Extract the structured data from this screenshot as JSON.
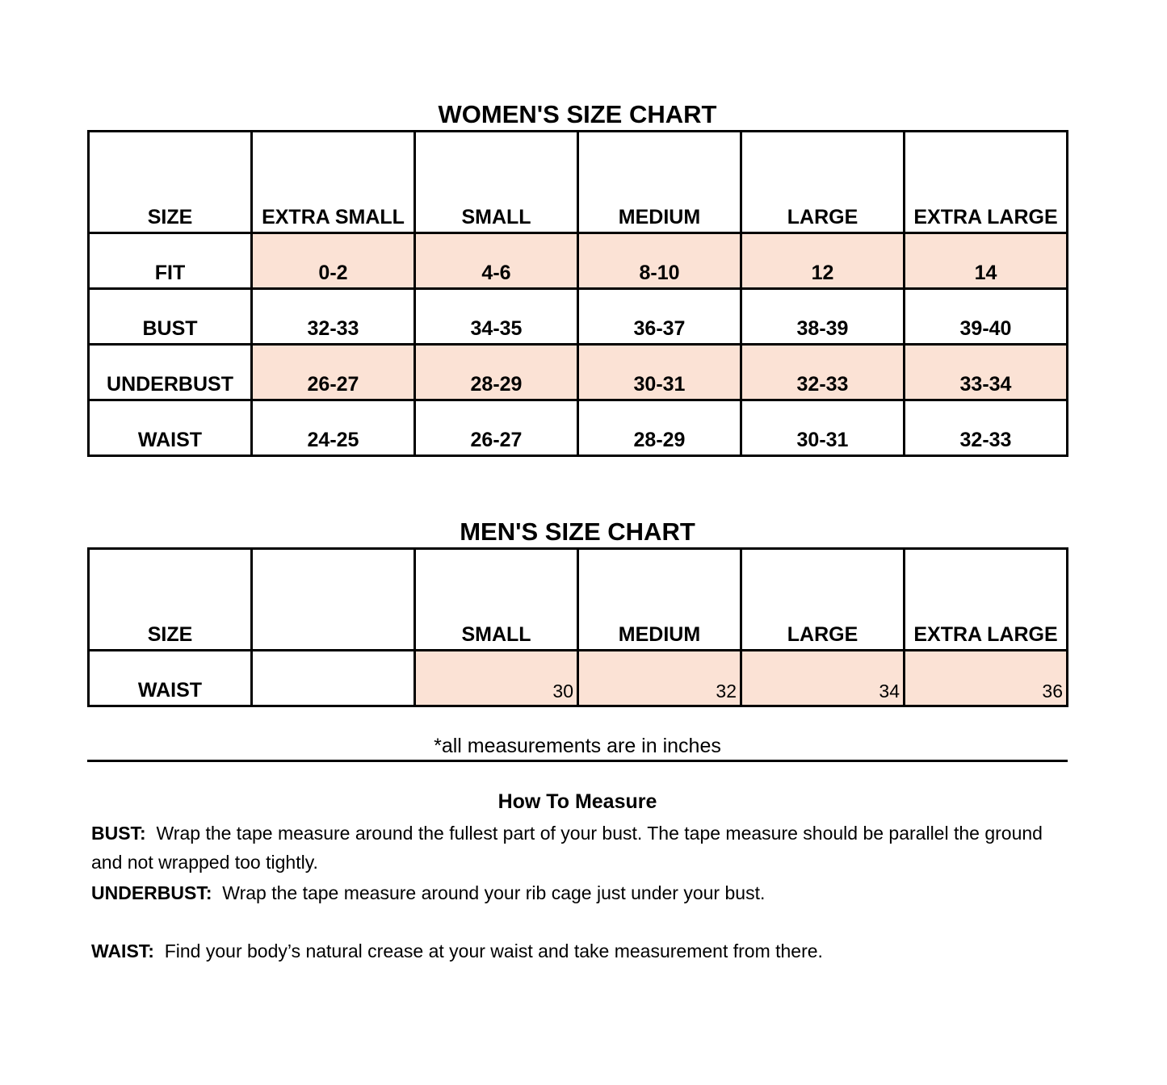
{
  "womens": {
    "title": "WOMEN'S SIZE CHART",
    "headers": [
      "SIZE",
      "EXTRA SMALL",
      "SMALL",
      "MEDIUM",
      "LARGE",
      "EXTRA LARGE"
    ],
    "rows": [
      {
        "label": "FIT",
        "values": [
          "0-2",
          "4-6",
          "8-10",
          "12",
          "14"
        ]
      },
      {
        "label": "BUST",
        "values": [
          "32-33",
          "34-35",
          "36-37",
          "38-39",
          "39-40"
        ]
      },
      {
        "label": "UNDERBUST",
        "values": [
          "26-27",
          "28-29",
          "30-31",
          "32-33",
          "33-34"
        ]
      },
      {
        "label": "WAIST",
        "values": [
          "24-25",
          "26-27",
          "28-29",
          "30-31",
          "32-33"
        ]
      }
    ]
  },
  "mens": {
    "title": "MEN'S SIZE CHART",
    "headers": [
      "SIZE",
      "",
      "SMALL",
      "MEDIUM",
      "LARGE",
      "EXTRA LARGE"
    ],
    "rows": [
      {
        "label": "WAIST",
        "values": [
          "",
          "30",
          "32",
          "34",
          "36"
        ]
      }
    ]
  },
  "note": "*all measurements are in inches",
  "how_to": {
    "title": "How To Measure",
    "items": [
      {
        "label": "BUST:",
        "text": "Wrap the tape measure around the fullest part of your bust. The tape measure should be parallel the ground and not wrapped too tightly."
      },
      {
        "label": "UNDERBUST:",
        "text": "Wrap the tape measure around your rib cage just under your bust."
      },
      {
        "label": "WAIST:",
        "text": "Find your body’s natural crease at your waist and take measurement from there."
      }
    ]
  },
  "colors": {
    "highlight": "#fbe2d5",
    "border": "#000000"
  }
}
